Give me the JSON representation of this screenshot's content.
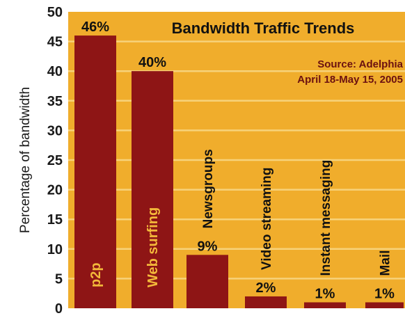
{
  "chart_data": {
    "type": "bar",
    "title": "Bandwidth Traffic Trends",
    "source_line1": "Source: Adelphia",
    "source_line2": "April 18-May 15, 2005",
    "ylabel": "Percentage of bandwidth",
    "xlabel": "",
    "ylim": [
      0,
      50
    ],
    "yticks": [
      "0",
      "5",
      "10",
      "15",
      "20",
      "25",
      "30",
      "35",
      "40",
      "45",
      "50"
    ],
    "categories": [
      "p2p",
      "Web surfing",
      "Newsgroups",
      "Video streaming",
      "Instant messaging",
      "Mail"
    ],
    "values": [
      46,
      40,
      9,
      2,
      1,
      1
    ],
    "value_labels": [
      "46%",
      "40%",
      "9%",
      "2%",
      "1%",
      "1%"
    ],
    "grid": true,
    "colors": {
      "background": "#f0ad2c",
      "gridline": "#f7d27a",
      "bar": "#8e1515",
      "label_inside": "#f3b83a",
      "source_text": "#6b1010"
    }
  }
}
